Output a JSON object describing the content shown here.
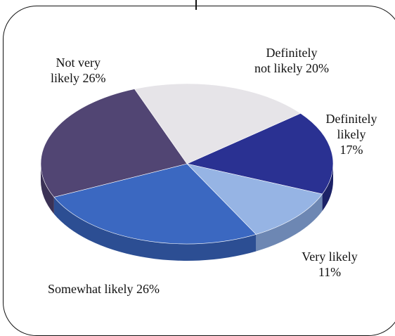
{
  "chart_data": {
    "type": "pie",
    "style": "3d",
    "slices": [
      {
        "label": "Definitely likely",
        "value": 17,
        "display": "Definitely likely 17%",
        "lines": [
          "Definitely",
          "likely",
          "17%"
        ],
        "color": "#2a3192",
        "side": "#1c2266"
      },
      {
        "label": "Very likely",
        "value": 11,
        "display": "Very likely 11%",
        "lines": [
          "Very likely",
          "11%"
        ],
        "color": "#96b4e4",
        "side": "#6d87b3"
      },
      {
        "label": "Somewhat likely",
        "value": 26,
        "display": "Somewhat likely 26%",
        "lines": [
          "Somewhat likely 26%"
        ],
        "color": "#3b68c1",
        "side": "#2c4e93"
      },
      {
        "label": "Not very likely",
        "value": 26,
        "display": "Not very likely 26%",
        "lines": [
          "Not very",
          "likely 26%"
        ],
        "color": "#514573",
        "side": "#3b3256"
      },
      {
        "label": "Definitely not likely",
        "value": 20,
        "display": "Definitely not likely 20%",
        "lines": [
          "Definitely",
          "not likely 20%"
        ],
        "color": "#e6e4e8",
        "side": "#b9b6bd"
      }
    ]
  }
}
